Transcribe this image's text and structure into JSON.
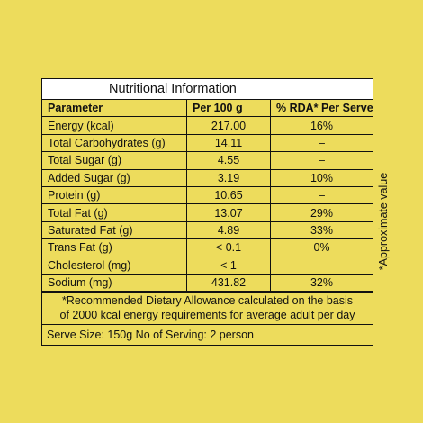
{
  "label": {
    "title": "Nutritional Information",
    "headers": [
      "Parameter",
      "Per 100 g",
      "% RDA* Per Serve"
    ],
    "rows": [
      {
        "parameter": "Energy (kcal)",
        "per100g": "217.00",
        "rda": "16%"
      },
      {
        "parameter": "Total Carbohydrates (g)",
        "per100g": "14.11",
        "rda": "–"
      },
      {
        "parameter": "Total Sugar (g)",
        "per100g": "4.55",
        "rda": "–"
      },
      {
        "parameter": "Added Sugar (g)",
        "per100g": "3.19",
        "rda": "10%"
      },
      {
        "parameter": "Protein (g)",
        "per100g": "10.65",
        "rda": "–"
      },
      {
        "parameter": "Total Fat (g)",
        "per100g": "13.07",
        "rda": "29%"
      },
      {
        "parameter": "Saturated Fat (g)",
        "per100g": "4.89",
        "rda": "33%"
      },
      {
        "parameter": "Trans Fat (g)",
        "per100g": "< 0.1",
        "rda": "0%"
      },
      {
        "parameter": "Cholesterol (mg)",
        "per100g": "< 1",
        "rda": "–"
      },
      {
        "parameter": "Sodium (mg)",
        "per100g": "431.82",
        "rda": "32%"
      }
    ],
    "footnote_line1": "*Recommended Dietary Allowance calculated on the basis",
    "footnote_line2": "of 2000 kcal energy requirements for average  adult per day",
    "serve_size": "Serve Size: 150g No of Serving: 2 person"
  },
  "side_note": "*Approximate value",
  "colors": {
    "background": "#EDDC5C",
    "title_background": "#FFFFFF",
    "border": "#111111"
  }
}
